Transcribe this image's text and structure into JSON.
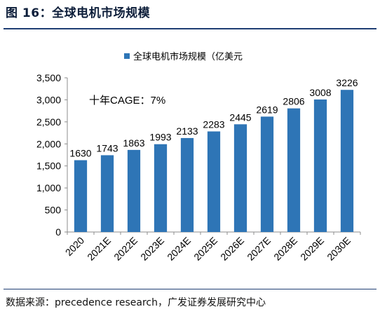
{
  "figure": {
    "title": "图 16：全球电机市场规模",
    "source": "数据来源：precedence research，广发证券发展研究中心"
  },
  "chart_data": {
    "type": "bar",
    "legend": {
      "label": "全球电机市场规模（亿美元",
      "color": "#2e75b6",
      "placement": "top-center"
    },
    "annotation": "十年CAGE：7%",
    "categories": [
      "2020",
      "2021E",
      "2022E",
      "2023E",
      "2024E",
      "2025E",
      "2026E",
      "2027E",
      "2028E",
      "2029E",
      "2030E"
    ],
    "values": [
      1630,
      1743,
      1863,
      1993,
      2133,
      2283,
      2445,
      2619,
      2806,
      3008,
      3226
    ],
    "ylim": [
      0,
      3500
    ],
    "yticks": [
      0,
      500,
      1000,
      1500,
      2000,
      2500,
      3000,
      3500
    ],
    "ytick_labels": [
      "0",
      "500",
      "1,000",
      "1,500",
      "2,000",
      "2,500",
      "3,000",
      "3,500"
    ],
    "xlabel": "",
    "ylabel": "",
    "grid": false,
    "bar_color": "#2e75b6"
  }
}
